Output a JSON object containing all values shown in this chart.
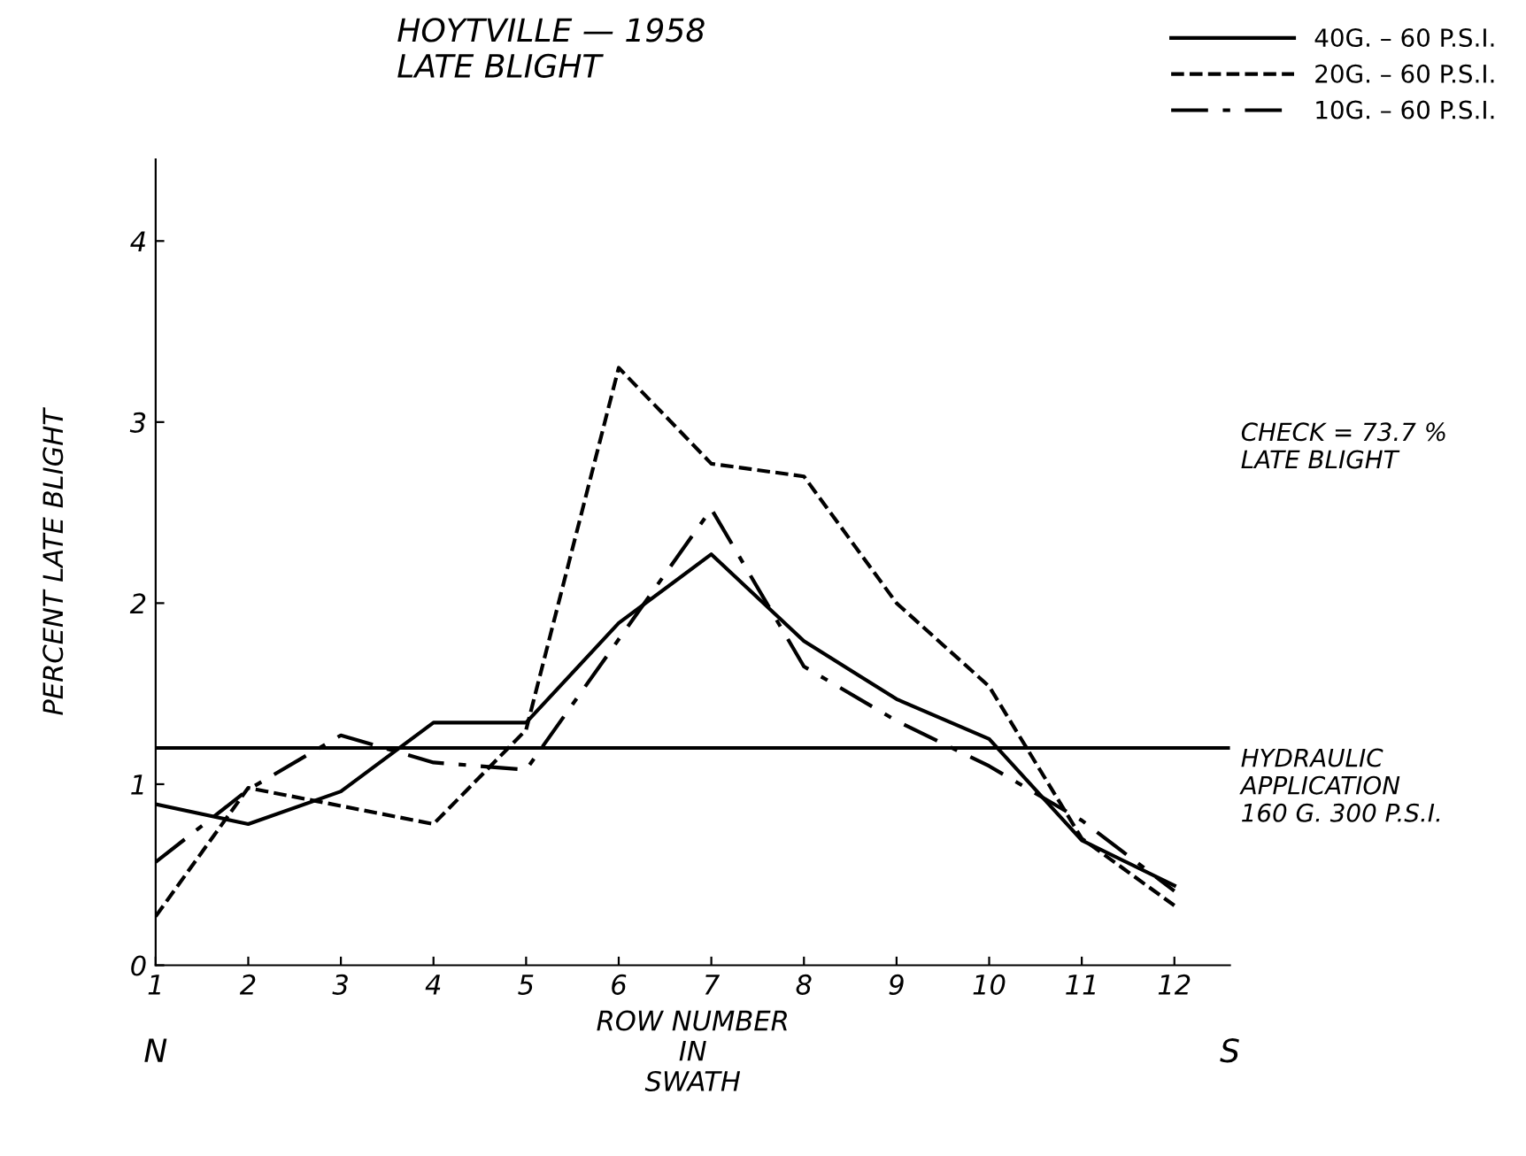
{
  "chart_data": {
    "type": "line",
    "title": "HOYTVILLE — 1958\nLATE BLIGHT",
    "xlabel": "ROW NUMBER\nIN\nSWATH",
    "ylabel": "PERCENT LATE BLIGHT",
    "x": [
      1,
      2,
      3,
      4,
      5,
      6,
      7,
      8,
      9,
      10,
      11,
      12
    ],
    "series": [
      {
        "name": "40G. – 60 P.S.I.",
        "color": "#000000",
        "line_style": "solid",
        "values": [
          0.89,
          0.78,
          0.96,
          1.34,
          1.34,
          1.89,
          2.27,
          1.79,
          1.47,
          1.25,
          0.69,
          0.44
        ]
      },
      {
        "name": "20G. – 60 P.S.I.",
        "color": "#000000",
        "line_style": "dashed",
        "values": [
          0.27,
          0.98,
          0.88,
          0.78,
          1.3,
          3.3,
          2.77,
          2.7,
          2.0,
          1.54,
          0.7,
          0.33
        ]
      },
      {
        "name": "10G. – 60 P.S.I.",
        "color": "#000000",
        "line_style": "dashdot",
        "values": [
          0.57,
          0.97,
          1.27,
          1.12,
          1.08,
          1.8,
          2.52,
          1.65,
          1.35,
          1.1,
          0.8,
          0.41
        ]
      }
    ],
    "xlim": [
      1,
      12.6
    ],
    "ylim": [
      0,
      4.45
    ],
    "xticks": [
      1,
      2,
      3,
      4,
      5,
      6,
      7,
      8,
      9,
      10,
      11,
      12
    ],
    "yticks": [
      0,
      1,
      2,
      3,
      4
    ],
    "ref_lines": [
      {
        "axis": "y",
        "value": 1.2,
        "label": "HYDRAULIC\nAPPLICATION\n160 G. 300 P.S.I.",
        "color": "#000000"
      }
    ],
    "annotations": [
      "CHECK = 73.7 %\nLATE BLIGHT",
      "N",
      "S"
    ],
    "legend": "top right",
    "grid": false,
    "marker": "none"
  }
}
